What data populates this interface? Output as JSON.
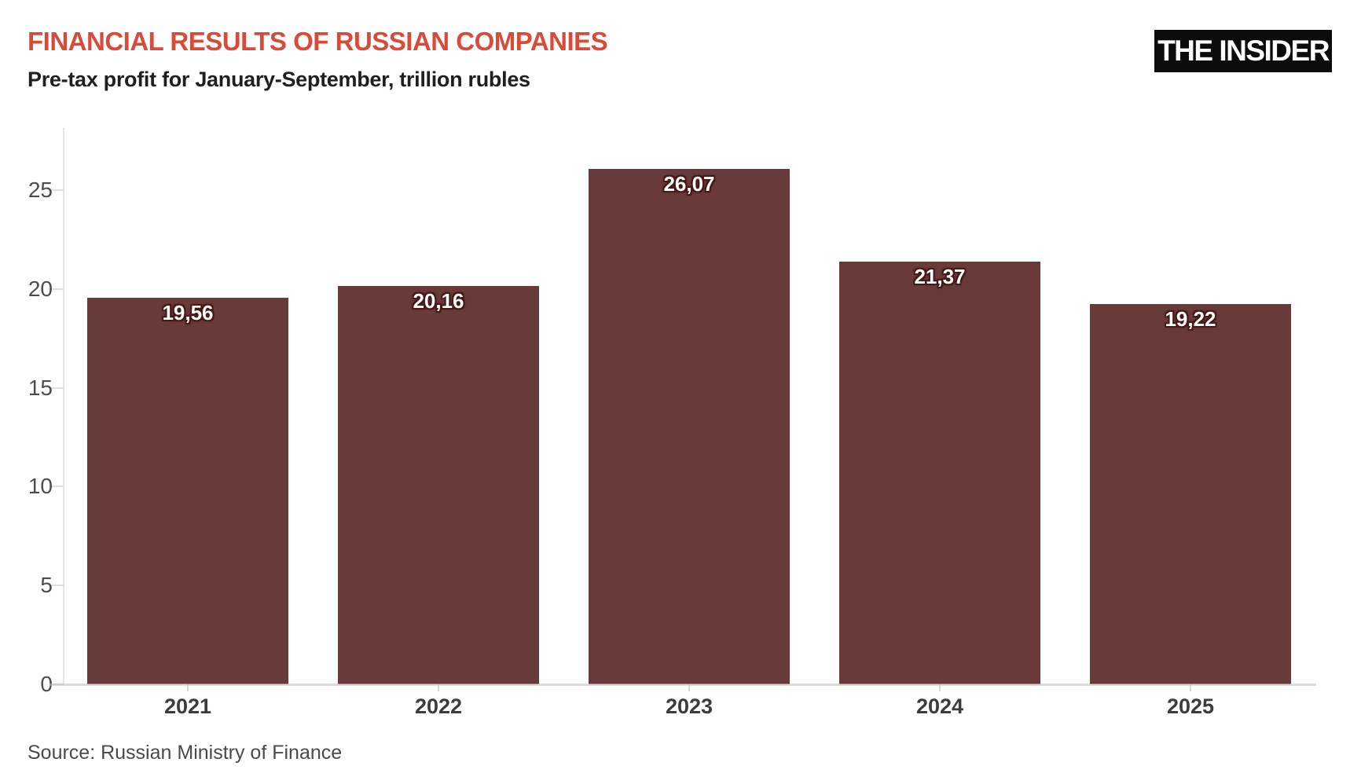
{
  "header": {
    "title": "FINANCIAL RESULTS OF RUSSIAN COMPANIES",
    "subtitle": "Pre-tax profit for January-September, trillion rubles",
    "logo": "THE INSIDER"
  },
  "footer": {
    "source": "Source: Russian Ministry of Finance"
  },
  "colors": {
    "title_red": "#da4a38",
    "bar_fill": "#683a39",
    "value_label_text": "#ffffff",
    "value_label_halo": "#471916",
    "axis_gray": "#e6e6e6",
    "logo_background": "#0c0c0c"
  },
  "chart_data": {
    "type": "bar",
    "title": "FINANCIAL RESULTS OF RUSSIAN COMPANIES",
    "subtitle": "Pre-tax profit for January-September, trillion rubles",
    "source": "Source: Russian Ministry of Finance",
    "categories": [
      "2021",
      "2022",
      "2023",
      "2024",
      "2025"
    ],
    "values": [
      19.56,
      20.16,
      26.07,
      21.37,
      19.22
    ],
    "value_labels": [
      "19,56",
      "20,16",
      "26,07",
      "21,37",
      "19,22"
    ],
    "xlabel": "",
    "ylabel": "",
    "ylim": [
      0,
      28.1
    ],
    "yticks": [
      0,
      5,
      10,
      15,
      20,
      25
    ],
    "ytick_labels": [
      "0",
      "5",
      "10",
      "15",
      "20",
      "25"
    ],
    "grid": false,
    "legend": false,
    "bar_color": "#683a39"
  }
}
